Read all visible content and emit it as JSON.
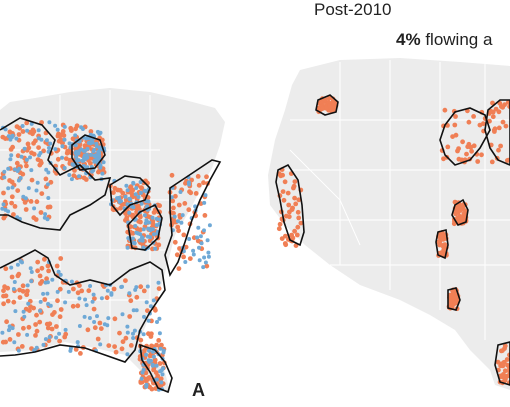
{
  "header": {
    "period": "Post-2010",
    "percent": "4%",
    "percent_label": "flowing a"
  },
  "panel_label": "A",
  "maps": {
    "left": {
      "name": "eastern-us-wells-map",
      "land_color": "#ececec",
      "state_line_color": "#ffffff",
      "aquifer_outline_color": "#111111",
      "series": [
        {
          "color": "#f07f55"
        },
        {
          "color": "#6fa9d6"
        }
      ]
    },
    "right": {
      "name": "western-us-wells-map",
      "land_color": "#ececec",
      "state_line_color": "#ffffff",
      "aquifer_outline_color": "#111111",
      "series": [
        {
          "color": "#f07f55"
        }
      ]
    }
  }
}
